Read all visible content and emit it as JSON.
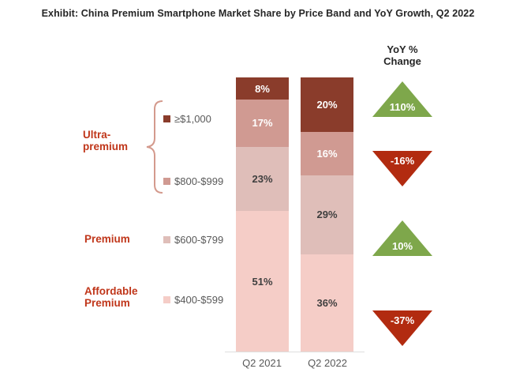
{
  "title": "Exhibit: China Premium Smartphone Market Share by Price Band and YoY Growth, Q2 2022",
  "yoy": {
    "header_line1": "YoY %",
    "header_line2": "Change",
    "items": [
      {
        "value": "110%",
        "direction": "up",
        "band": "≥$1,000"
      },
      {
        "value": "-16%",
        "direction": "down",
        "band": "$800-$999"
      },
      {
        "value": "10%",
        "direction": "up",
        "band": "$600-$799"
      },
      {
        "value": "-37%",
        "direction": "down",
        "band": "$400-$599"
      }
    ]
  },
  "groups": [
    {
      "name": "Ultra-premium",
      "lines": [
        "Ultra-",
        "premium"
      ]
    },
    {
      "name": "Premium",
      "lines": [
        "Premium"
      ]
    },
    {
      "name": "Affordable Premium",
      "lines": [
        "Affordable",
        "Premium"
      ]
    }
  ],
  "colors": {
    "band_gte_1000": "#8a3c2b",
    "band_800_999": "#d09a92",
    "band_600_799": "#dfbeb9",
    "band_400_599": "#f5cdc7",
    "up_triangle": "#7ea74b",
    "down_triangle": "#b22b10",
    "group_label": "#c0361a",
    "axis_text": "#595959",
    "title_text": "#262626",
    "brace": "#d49a8d"
  },
  "chart_data": {
    "type": "bar",
    "stacked": true,
    "unit": "%",
    "value_labels": "inside",
    "legend_position": "left",
    "categories": [
      "Q2 2021",
      "Q2 2022"
    ],
    "series": [
      {
        "name": "≥$1,000",
        "group": "Ultra-premium",
        "color": "#8a3c2b",
        "label_color": "#ffffff",
        "values": [
          8,
          20
        ]
      },
      {
        "name": "$800-$999",
        "group": "Ultra-premium",
        "color": "#d09a92",
        "label_color": "#ffffff",
        "values": [
          17,
          16
        ]
      },
      {
        "name": "$600-$799",
        "group": "Premium",
        "color": "#dfbeb9",
        "label_color": "#3f3f3f",
        "values": [
          23,
          29
        ]
      },
      {
        "name": "$400-$599",
        "group": "Affordable Premium",
        "color": "#f5cdc7",
        "label_color": "#3f3f3f",
        "values": [
          51,
          36
        ]
      }
    ],
    "yoy_change_pct": {
      "≥$1,000": 110,
      "$800-$999": -16,
      "$600-$799": 10,
      "$400-$599": -37
    }
  }
}
